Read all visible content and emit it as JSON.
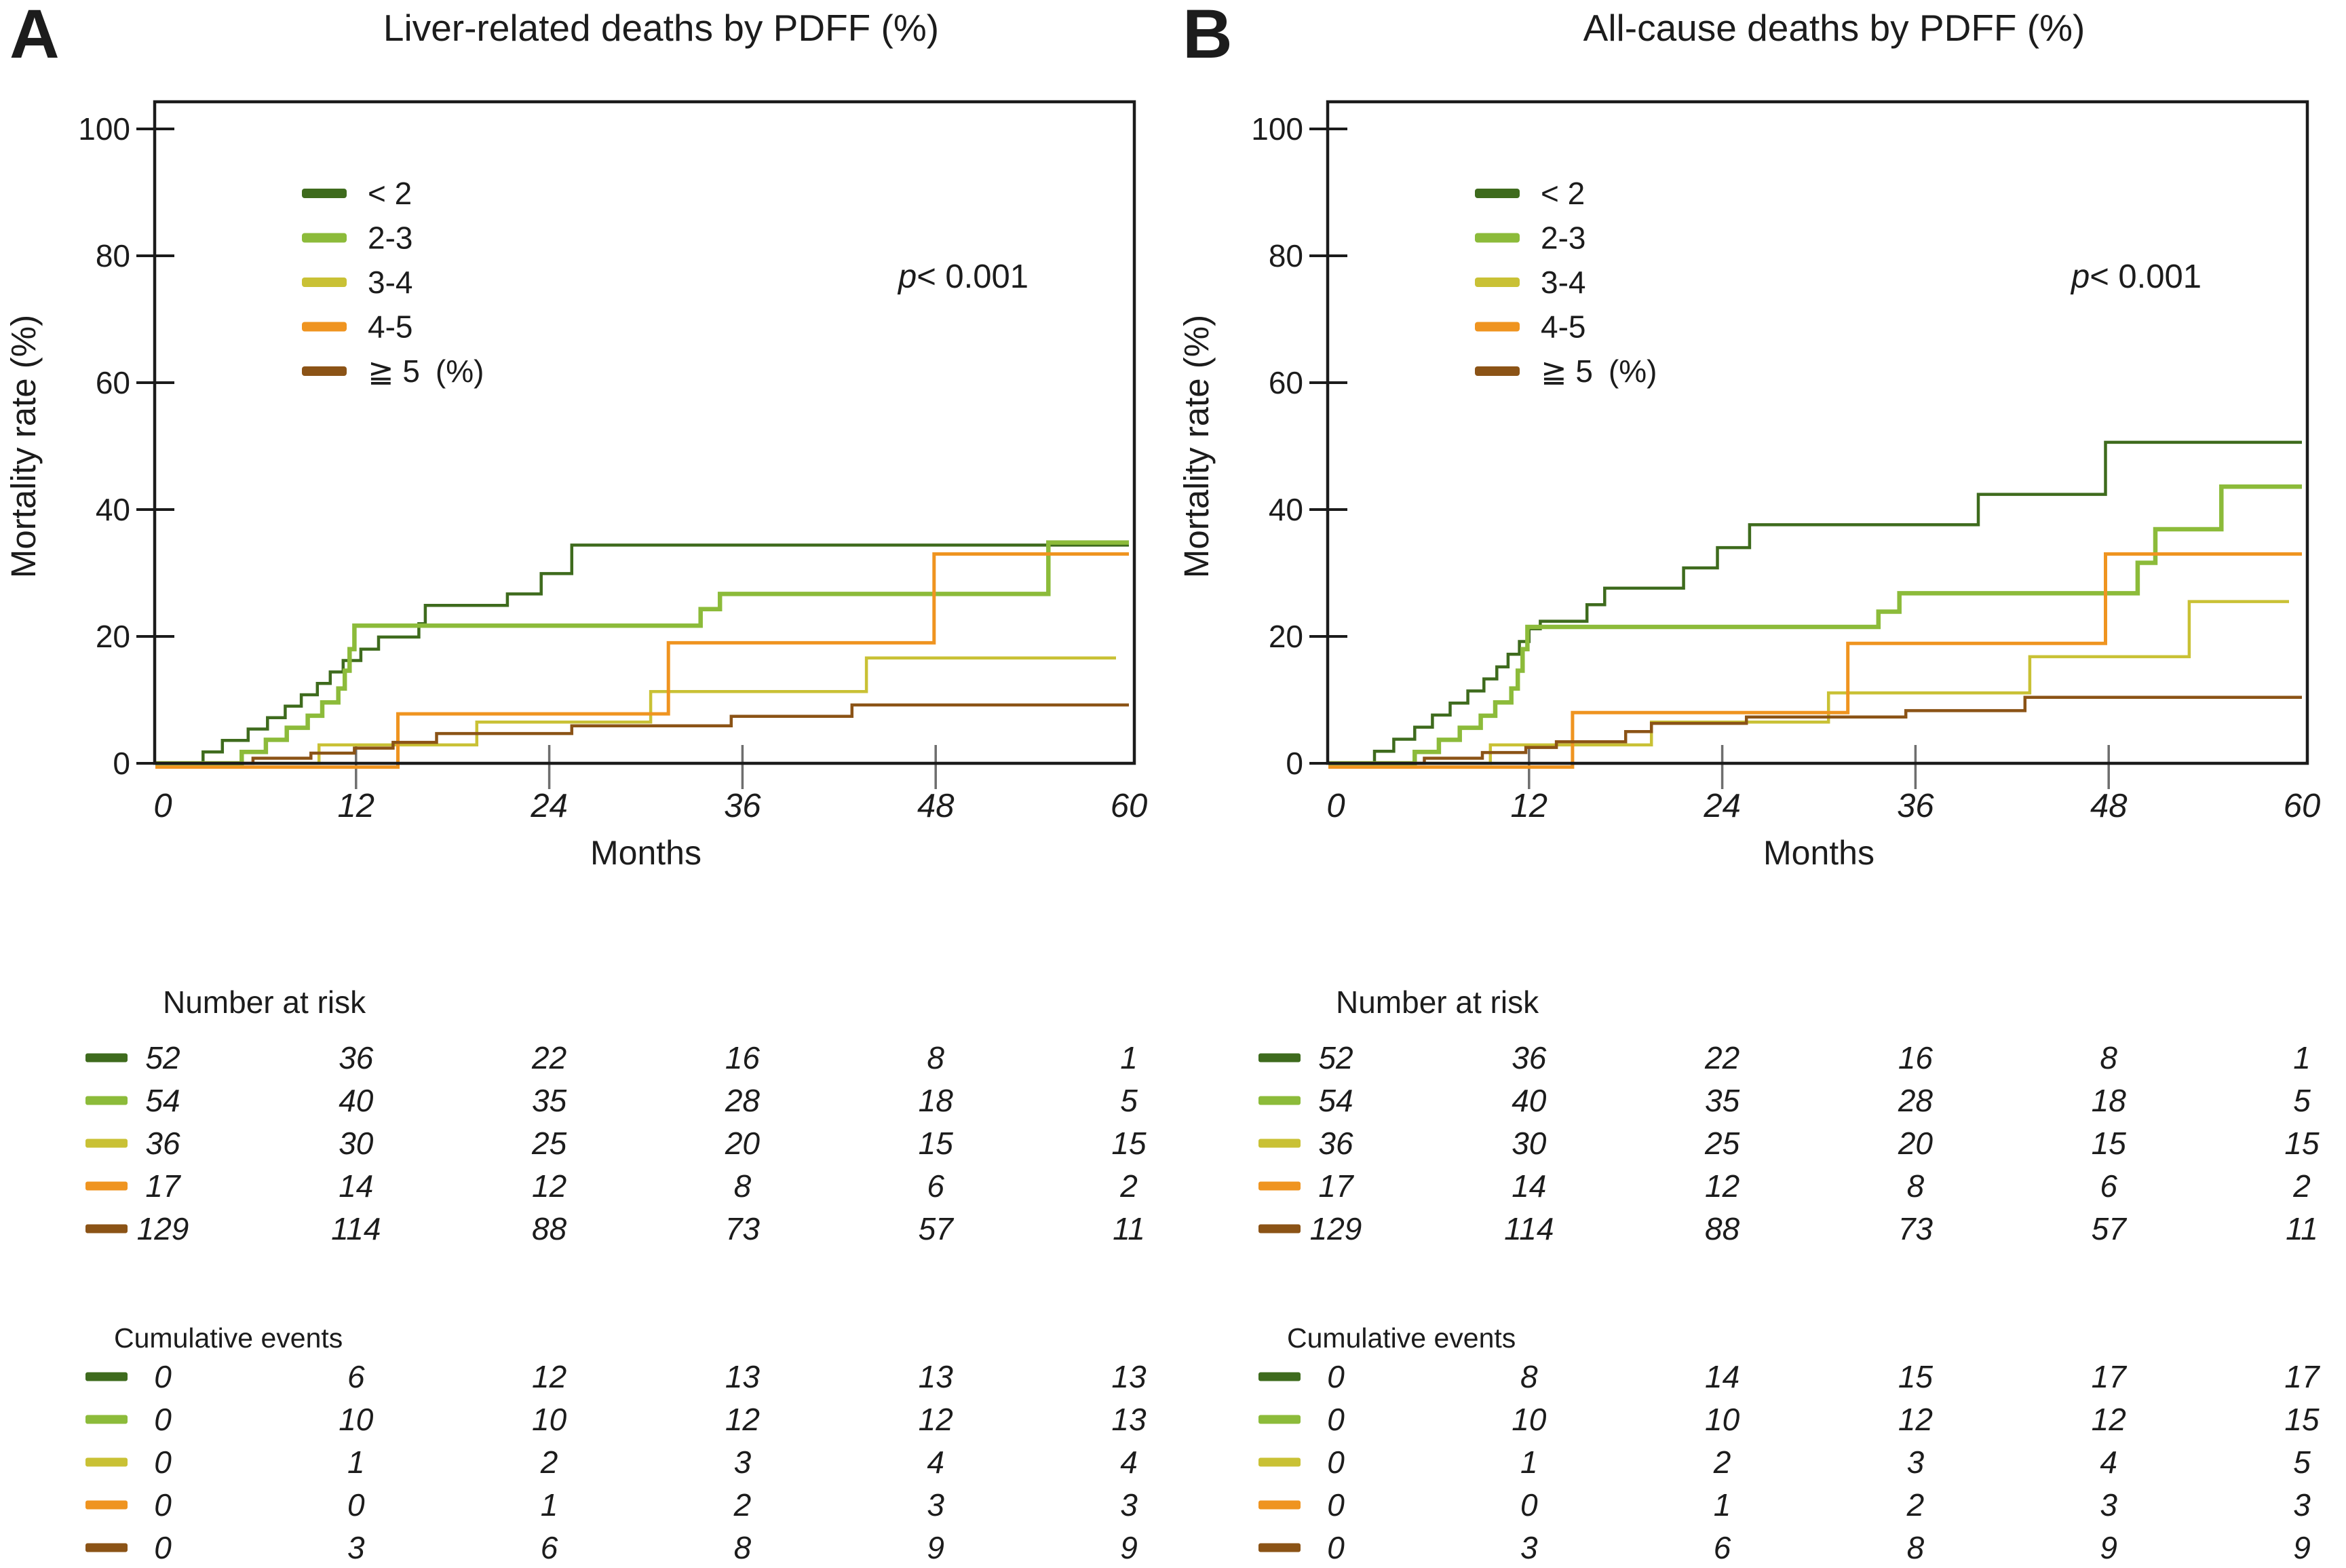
{
  "chart_data": [
    {
      "panel_letter": "A",
      "title": "Liver-related deaths by PDFF (%)",
      "type": "line",
      "subtype": "kaplan-meier-step",
      "xlabel": "Months",
      "ylabel": "Mortality rate (%)",
      "xlim": [
        0,
        60
      ],
      "ylim": [
        0,
        100
      ],
      "x_ticks": [
        0,
        12,
        24,
        36,
        48,
        60
      ],
      "y_ticks": [
        0,
        20,
        40,
        60,
        80,
        100
      ],
      "grid": false,
      "legend_position": "upper-left-inside",
      "p_symbol": "p",
      "p_text": "< 0.001",
      "series": [
        {
          "name": "< 2",
          "color": "#3e6b1d",
          "line_width": 4.5,
          "start_value": 0,
          "end_month": 60,
          "steps": [
            [
              2.5,
              1.8
            ],
            [
              3.7,
              3.6
            ],
            [
              5.3,
              5.4
            ],
            [
              6.5,
              7.2
            ],
            [
              7.6,
              9.0
            ],
            [
              8.6,
              10.8
            ],
            [
              9.6,
              12.6
            ],
            [
              10.4,
              14.4
            ],
            [
              11.2,
              16.2
            ],
            [
              12.3,
              18.0
            ],
            [
              13.4,
              19.9
            ],
            [
              15.9,
              22.0
            ],
            [
              16.3,
              24.9
            ],
            [
              21.4,
              26.7
            ],
            [
              23.5,
              29.9
            ],
            [
              25.4,
              34.4
            ]
          ]
        },
        {
          "name": "2-3",
          "color": "#8cbb3a",
          "line_width": 6.5,
          "start_value": 0,
          "end_month": 60,
          "steps": [
            [
              4.9,
              1.8
            ],
            [
              6.4,
              3.7
            ],
            [
              7.7,
              5.6
            ],
            [
              9.0,
              7.5
            ],
            [
              9.9,
              9.6
            ],
            [
              10.9,
              11.8
            ],
            [
              11.3,
              14.6
            ],
            [
              11.6,
              18.0
            ],
            [
              11.9,
              21.7
            ],
            [
              33.4,
              24.3
            ],
            [
              34.6,
              26.7
            ],
            [
              55.0,
              34.8
            ]
          ]
        },
        {
          "name": "3-4",
          "color": "#c9c135",
          "line_width": 4.5,
          "start_value": 0,
          "end_month": 59.2,
          "steps": [
            [
              9.7,
              2.9
            ],
            [
              19.5,
              6.5
            ],
            [
              30.3,
              11.3
            ],
            [
              43.7,
              16.6
            ]
          ]
        },
        {
          "name": "4-5",
          "color": "#ef9420",
          "line_width": 5,
          "start_value": -0.6,
          "end_month": 60,
          "steps": [
            [
              14.6,
              7.8
            ],
            [
              31.4,
              19.0
            ],
            [
              47.9,
              33.0
            ]
          ]
        },
        {
          "name": "≧ 5",
          "unit_suffix": "(%)",
          "color": "#8b5316",
          "line_width": 4.5,
          "start_value": 0,
          "end_month": 60,
          "steps": [
            [
              5.6,
              0.8
            ],
            [
              9.2,
              1.6
            ],
            [
              11.9,
              2.4
            ],
            [
              14.3,
              3.3
            ],
            [
              17.0,
              4.7
            ],
            [
              25.4,
              5.9
            ],
            [
              35.3,
              7.4
            ],
            [
              42.8,
              9.2
            ]
          ]
        }
      ],
      "number_at_risk": {
        "header": "Number at risk",
        "times": [
          0,
          12,
          24,
          36,
          48,
          60
        ],
        "rows": [
          {
            "group": "< 2",
            "values": [
              52,
              36,
              22,
              16,
              8,
              1
            ]
          },
          {
            "group": "2-3",
            "values": [
              54,
              40,
              35,
              28,
              18,
              5
            ]
          },
          {
            "group": "3-4",
            "values": [
              36,
              30,
              25,
              20,
              15,
              15
            ]
          },
          {
            "group": "4-5",
            "values": [
              17,
              14,
              12,
              8,
              6,
              2
            ]
          },
          {
            "group": "≧ 5",
            "values": [
              129,
              114,
              88,
              73,
              57,
              11
            ]
          }
        ]
      },
      "cumulative_events": {
        "header": "Cumulative events",
        "times": [
          0,
          12,
          24,
          36,
          48,
          60
        ],
        "rows": [
          {
            "group": "< 2",
            "values": [
              0,
              6,
              12,
              13,
              13,
              13
            ]
          },
          {
            "group": "2-3",
            "values": [
              0,
              10,
              10,
              12,
              12,
              13
            ]
          },
          {
            "group": "3-4",
            "values": [
              0,
              1,
              2,
              3,
              4,
              4
            ]
          },
          {
            "group": "4-5",
            "values": [
              0,
              0,
              1,
              2,
              3,
              3
            ]
          },
          {
            "group": "≧ 5",
            "values": [
              0,
              3,
              6,
              8,
              9,
              9
            ]
          }
        ]
      }
    },
    {
      "panel_letter": "B",
      "title": "All-cause deaths by PDFF (%)",
      "type": "line",
      "subtype": "kaplan-meier-step",
      "xlabel": "Months",
      "ylabel": "Mortality rate (%)",
      "xlim": [
        0,
        60
      ],
      "ylim": [
        0,
        100
      ],
      "x_ticks": [
        0,
        12,
        24,
        36,
        48,
        60
      ],
      "y_ticks": [
        0,
        20,
        40,
        60,
        80,
        100
      ],
      "grid": false,
      "legend_position": "upper-left-inside",
      "p_symbol": "p",
      "p_text": "< 0.001",
      "series": [
        {
          "name": "< 2",
          "color": "#3e6b1d",
          "line_width": 4.5,
          "start_value": 0,
          "end_month": 60,
          "steps": [
            [
              2.4,
              1.9
            ],
            [
              3.6,
              3.8
            ],
            [
              4.9,
              5.7
            ],
            [
              6.0,
              7.6
            ],
            [
              7.1,
              9.5
            ],
            [
              8.2,
              11.4
            ],
            [
              9.2,
              13.3
            ],
            [
              10.0,
              15.2
            ],
            [
              10.7,
              17.2
            ],
            [
              11.4,
              19.2
            ],
            [
              12.0,
              21.2
            ],
            [
              12.7,
              22.4
            ],
            [
              15.6,
              25.0
            ],
            [
              16.7,
              27.6
            ],
            [
              21.6,
              30.8
            ],
            [
              23.7,
              34.0
            ],
            [
              25.7,
              37.6
            ],
            [
              39.9,
              42.4
            ],
            [
              47.8,
              50.6
            ]
          ]
        },
        {
          "name": "2-3",
          "color": "#8cbb3a",
          "line_width": 6.5,
          "start_value": 0,
          "end_month": 60,
          "steps": [
            [
              4.9,
              1.8
            ],
            [
              6.4,
              3.7
            ],
            [
              7.7,
              5.6
            ],
            [
              9.0,
              7.5
            ],
            [
              9.9,
              9.6
            ],
            [
              10.9,
              11.8
            ],
            [
              11.3,
              14.6
            ],
            [
              11.6,
              18.0
            ],
            [
              11.9,
              21.5
            ],
            [
              33.7,
              23.9
            ],
            [
              35.0,
              26.8
            ],
            [
              49.8,
              31.6
            ],
            [
              50.9,
              36.9
            ],
            [
              55.0,
              43.6
            ]
          ]
        },
        {
          "name": "3-4",
          "color": "#c9c135",
          "line_width": 4.5,
          "start_value": 0,
          "end_month": 59.2,
          "steps": [
            [
              9.6,
              2.9
            ],
            [
              19.6,
              6.5
            ],
            [
              30.6,
              11.1
            ],
            [
              43.1,
              16.8
            ],
            [
              53.0,
              25.5
            ]
          ]
        },
        {
          "name": "4-5",
          "color": "#ef9420",
          "line_width": 5,
          "start_value": -0.6,
          "end_month": 60,
          "steps": [
            [
              14.7,
              8.0
            ],
            [
              31.8,
              18.9
            ],
            [
              47.8,
              33.0
            ]
          ]
        },
        {
          "name": "≧ 5",
          "unit_suffix": "(%)",
          "color": "#8b5316",
          "line_width": 4.5,
          "start_value": 0,
          "end_month": 60,
          "steps": [
            [
              5.5,
              0.8
            ],
            [
              9.1,
              1.7
            ],
            [
              11.8,
              2.5
            ],
            [
              13.7,
              3.4
            ],
            [
              18.0,
              5.0
            ],
            [
              19.6,
              6.3
            ],
            [
              25.5,
              7.3
            ],
            [
              35.4,
              8.3
            ],
            [
              42.8,
              10.4
            ]
          ]
        }
      ],
      "number_at_risk": {
        "header": "Number at risk",
        "times": [
          0,
          12,
          24,
          36,
          48,
          60
        ],
        "rows": [
          {
            "group": "< 2",
            "values": [
              52,
              36,
              22,
              16,
              8,
              1
            ]
          },
          {
            "group": "2-3",
            "values": [
              54,
              40,
              35,
              28,
              18,
              5
            ]
          },
          {
            "group": "3-4",
            "values": [
              36,
              30,
              25,
              20,
              15,
              15
            ]
          },
          {
            "group": "4-5",
            "values": [
              17,
              14,
              12,
              8,
              6,
              2
            ]
          },
          {
            "group": "≧ 5",
            "values": [
              129,
              114,
              88,
              73,
              57,
              11
            ]
          }
        ]
      },
      "cumulative_events": {
        "header": "Cumulative events",
        "times": [
          0,
          12,
          24,
          36,
          48,
          60
        ],
        "rows": [
          {
            "group": "< 2",
            "values": [
              0,
              8,
              14,
              15,
              17,
              17
            ]
          },
          {
            "group": "2-3",
            "values": [
              0,
              10,
              10,
              12,
              12,
              15
            ]
          },
          {
            "group": "3-4",
            "values": [
              0,
              1,
              2,
              3,
              4,
              5
            ]
          },
          {
            "group": "4-5",
            "values": [
              0,
              0,
              1,
              2,
              3,
              3
            ]
          },
          {
            "group": "≧ 5",
            "values": [
              0,
              3,
              6,
              8,
              9,
              9
            ]
          }
        ]
      }
    }
  ]
}
